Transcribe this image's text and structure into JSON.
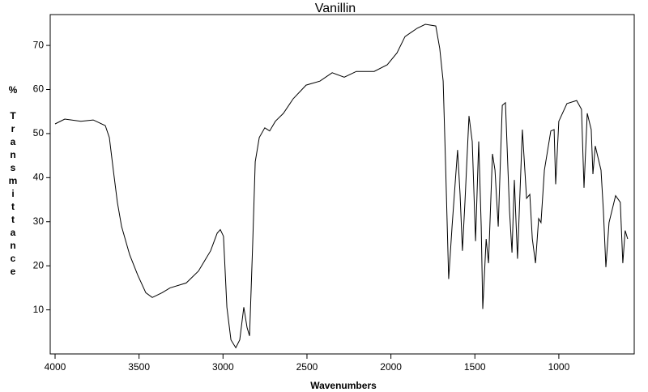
{
  "chart_data": {
    "type": "line",
    "title": "Vanillin",
    "x_label": "Wavenumbers",
    "y_label": "% Transmittance",
    "x": [
      4000,
      3942,
      3846,
      3773,
      3701,
      3677,
      3653,
      3629,
      3604,
      3556,
      3508,
      3460,
      3421,
      3363,
      3315,
      3219,
      3146,
      3074,
      3035,
      3016,
      2997,
      2977,
      2953,
      2924,
      2900,
      2876,
      2857,
      2842,
      2823,
      2808,
      2784,
      2751,
      2722,
      2688,
      2640,
      2582,
      2505,
      2423,
      2350,
      2278,
      2206,
      2100,
      2022,
      1964,
      1916,
      1844,
      1795,
      1733,
      1709,
      1689,
      1675,
      1656,
      1636,
      1603,
      1588,
      1574,
      1559,
      1535,
      1516,
      1496,
      1477,
      1462,
      1453,
      1433,
      1419,
      1395,
      1380,
      1361,
      1337,
      1318,
      1294,
      1279,
      1265,
      1246,
      1217,
      1192,
      1173,
      1158,
      1139,
      1120,
      1106,
      1086,
      1048,
      1028,
      1019,
      1000,
      952,
      894,
      865,
      850,
      831,
      807,
      797,
      783,
      749,
      735,
      720,
      701,
      662,
      634,
      619,
      605,
      590
    ],
    "series": [
      {
        "color": "#000000",
        "values": [
          52.2,
          53.3,
          52.8,
          53.1,
          51.8,
          49.1,
          41.7,
          34.4,
          28.9,
          22.5,
          17.9,
          13.9,
          12.8,
          13.9,
          15.0,
          16.1,
          18.8,
          23.4,
          27.4,
          28.2,
          26.7,
          10.6,
          3.2,
          1.4,
          3.2,
          10.6,
          6.0,
          4.1,
          25.2,
          43.6,
          49.1,
          51.3,
          50.6,
          52.8,
          54.6,
          57.9,
          61.0,
          61.9,
          63.8,
          62.8,
          64.1,
          64.1,
          65.6,
          68.3,
          72.0,
          73.9,
          74.8,
          74.4,
          69.3,
          61.9,
          43.6,
          17.0,
          28.9,
          46.3,
          36.2,
          23.4,
          34.4,
          54.0,
          48.2,
          25.6,
          48.2,
          28.9,
          10.2,
          26.1,
          20.6,
          45.4,
          41.7,
          28.9,
          56.4,
          57.0,
          32.6,
          23.0,
          39.5,
          21.6,
          50.9,
          35.3,
          36.2,
          26.1,
          20.6,
          30.7,
          29.8,
          41.7,
          50.6,
          50.9,
          38.5,
          52.8,
          56.8,
          57.5,
          55.5,
          37.7,
          54.6,
          50.9,
          40.8,
          47.2,
          41.7,
          32.6,
          19.7,
          29.8,
          35.9,
          34.4,
          20.6,
          28.0,
          26.1
        ]
      }
    ],
    "xlim": [
      4029,
      551
    ],
    "xticks": [
      4000,
      3500,
      3000,
      2500,
      2000,
      1500,
      1000
    ],
    "ylim": [
      0,
      77
    ],
    "yticks": [
      10,
      20,
      30,
      40,
      50,
      60,
      70
    ]
  }
}
